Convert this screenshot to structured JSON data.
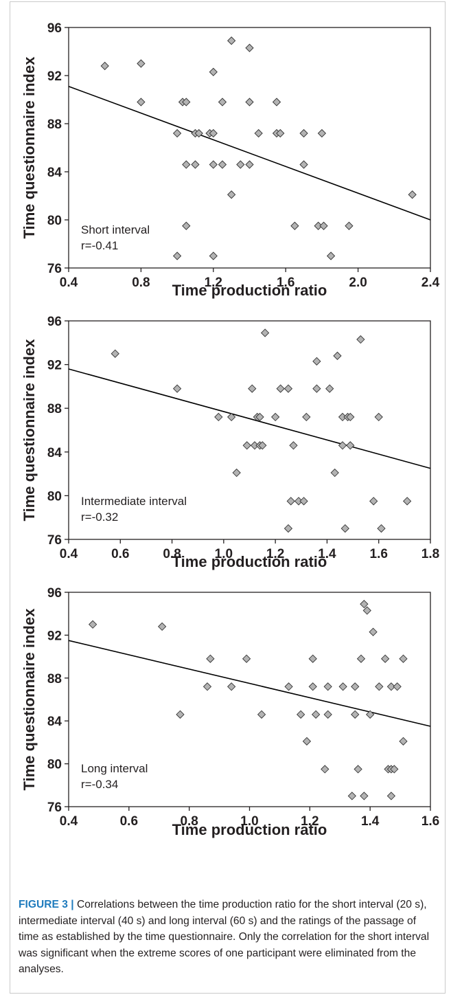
{
  "chart_data": [
    {
      "type": "scatter",
      "title": "",
      "xlabel": "Time production ratio",
      "ylabel": "Time questionnaire index",
      "xlim": [
        0.4,
        2.4
      ],
      "ylim": [
        76,
        96
      ],
      "xticks": [
        "0.4",
        "0.8",
        "1.2",
        "1.6",
        "2.0",
        "2.4"
      ],
      "yticks": [
        "76",
        "80",
        "84",
        "88",
        "92",
        "96"
      ],
      "annotation": [
        "Short interval",
        "r=-0.41"
      ],
      "trendline": [
        [
          0.4,
          91.1
        ],
        [
          2.4,
          80.0
        ]
      ],
      "grid": false,
      "points": [
        [
          0.6,
          92.8
        ],
        [
          0.8,
          93.0
        ],
        [
          0.8,
          89.8
        ],
        [
          1.0,
          87.2
        ],
        [
          1.0,
          77.0
        ],
        [
          1.03,
          89.8
        ],
        [
          1.05,
          89.8
        ],
        [
          1.05,
          84.6
        ],
        [
          1.05,
          79.5
        ],
        [
          1.1,
          87.2
        ],
        [
          1.12,
          87.2
        ],
        [
          1.1,
          84.6
        ],
        [
          1.18,
          87.2
        ],
        [
          1.2,
          87.2
        ],
        [
          1.2,
          92.3
        ],
        [
          1.2,
          84.6
        ],
        [
          1.2,
          77.0
        ],
        [
          1.25,
          89.8
        ],
        [
          1.25,
          84.6
        ],
        [
          1.3,
          94.9
        ],
        [
          1.3,
          82.1
        ],
        [
          1.35,
          84.6
        ],
        [
          1.4,
          94.3
        ],
        [
          1.4,
          89.8
        ],
        [
          1.4,
          84.6
        ],
        [
          1.45,
          87.2
        ],
        [
          1.55,
          89.8
        ],
        [
          1.55,
          87.2
        ],
        [
          1.57,
          87.2
        ],
        [
          1.65,
          79.5
        ],
        [
          1.7,
          87.2
        ],
        [
          1.7,
          84.6
        ],
        [
          1.78,
          79.5
        ],
        [
          1.8,
          87.2
        ],
        [
          1.81,
          79.5
        ],
        [
          1.85,
          77.0
        ],
        [
          1.95,
          79.5
        ],
        [
          2.3,
          82.1
        ]
      ]
    },
    {
      "type": "scatter",
      "title": "",
      "xlabel": "Time production ratio",
      "ylabel": "Time questionnaire index",
      "xlim": [
        0.4,
        1.8
      ],
      "ylim": [
        76,
        96
      ],
      "xticks": [
        "0.4",
        "0.6",
        "0.8",
        "1.0",
        "1.2",
        "1.4",
        "1.6",
        "1.8"
      ],
      "yticks": [
        "76",
        "80",
        "84",
        "88",
        "92",
        "96"
      ],
      "annotation": [
        "Intermediate interval",
        "r=-0.32"
      ],
      "trendline": [
        [
          0.4,
          91.6
        ],
        [
          1.8,
          82.5
        ]
      ],
      "grid": false,
      "points": [
        [
          0.58,
          93.0
        ],
        [
          0.82,
          89.8
        ],
        [
          0.98,
          87.2
        ],
        [
          1.03,
          87.2
        ],
        [
          1.05,
          82.1
        ],
        [
          1.09,
          84.6
        ],
        [
          1.11,
          89.8
        ],
        [
          1.12,
          84.6
        ],
        [
          1.13,
          87.2
        ],
        [
          1.14,
          84.6
        ],
        [
          1.14,
          87.2
        ],
        [
          1.15,
          84.6
        ],
        [
          1.16,
          94.9
        ],
        [
          1.2,
          87.2
        ],
        [
          1.22,
          89.8
        ],
        [
          1.25,
          89.8
        ],
        [
          1.25,
          77.0
        ],
        [
          1.26,
          79.5
        ],
        [
          1.27,
          84.6
        ],
        [
          1.29,
          79.5
        ],
        [
          1.31,
          79.5
        ],
        [
          1.32,
          87.2
        ],
        [
          1.36,
          92.3
        ],
        [
          1.36,
          89.8
        ],
        [
          1.41,
          89.8
        ],
        [
          1.43,
          82.1
        ],
        [
          1.44,
          92.8
        ],
        [
          1.46,
          87.2
        ],
        [
          1.46,
          84.6
        ],
        [
          1.47,
          77.0
        ],
        [
          1.48,
          87.2
        ],
        [
          1.49,
          87.2
        ],
        [
          1.49,
          84.6
        ],
        [
          1.53,
          94.3
        ],
        [
          1.58,
          79.5
        ],
        [
          1.6,
          87.2
        ],
        [
          1.61,
          77.0
        ],
        [
          1.71,
          79.5
        ]
      ]
    },
    {
      "type": "scatter",
      "title": "",
      "xlabel": "Time production ratio",
      "ylabel": "Time questionnaire index",
      "xlim": [
        0.4,
        1.6
      ],
      "ylim": [
        76,
        96
      ],
      "xticks": [
        "0.4",
        "0.6",
        "0.8",
        "1.0",
        "1.2",
        "1.4",
        "1.6"
      ],
      "yticks": [
        "76",
        "80",
        "84",
        "88",
        "92",
        "96"
      ],
      "annotation": [
        "Long interval",
        "r=-0.34"
      ],
      "trendline": [
        [
          0.4,
          91.5
        ],
        [
          1.6,
          83.5
        ]
      ],
      "grid": false,
      "points": [
        [
          0.48,
          93.0
        ],
        [
          0.71,
          92.8
        ],
        [
          0.77,
          84.6
        ],
        [
          0.86,
          87.2
        ],
        [
          0.87,
          89.8
        ],
        [
          0.94,
          87.2
        ],
        [
          0.99,
          89.8
        ],
        [
          1.04,
          84.6
        ],
        [
          1.13,
          87.2
        ],
        [
          1.17,
          84.6
        ],
        [
          1.19,
          82.1
        ],
        [
          1.21,
          89.8
        ],
        [
          1.21,
          87.2
        ],
        [
          1.22,
          84.6
        ],
        [
          1.25,
          79.5
        ],
        [
          1.26,
          87.2
        ],
        [
          1.26,
          84.6
        ],
        [
          1.31,
          87.2
        ],
        [
          1.34,
          77.0
        ],
        [
          1.35,
          87.2
        ],
        [
          1.35,
          84.6
        ],
        [
          1.36,
          79.5
        ],
        [
          1.37,
          89.8
        ],
        [
          1.38,
          77.0
        ],
        [
          1.38,
          94.9
        ],
        [
          1.39,
          94.3
        ],
        [
          1.4,
          84.6
        ],
        [
          1.41,
          92.3
        ],
        [
          1.43,
          87.2
        ],
        [
          1.45,
          89.8
        ],
        [
          1.46,
          79.5
        ],
        [
          1.47,
          87.2
        ],
        [
          1.47,
          79.5
        ],
        [
          1.47,
          77.0
        ],
        [
          1.48,
          79.5
        ],
        [
          1.49,
          87.2
        ],
        [
          1.51,
          89.8
        ],
        [
          1.51,
          82.1
        ]
      ]
    }
  ],
  "caption": {
    "label": "FIGURE 3 |",
    "text": " Correlations between the time production ratio for the short interval (20 s), intermediate interval (40 s) and long interval (60 s) and the ratings of the passage of time as established by the time questionnaire. Only the correlation for the short interval was significant when the extreme scores of one participant were eliminated from the analyses."
  },
  "colors": {
    "marker_fill": "#b3b3b3",
    "marker_stroke": "#333333",
    "axis": "#231f20",
    "caption_label": "#1f7bbd"
  }
}
